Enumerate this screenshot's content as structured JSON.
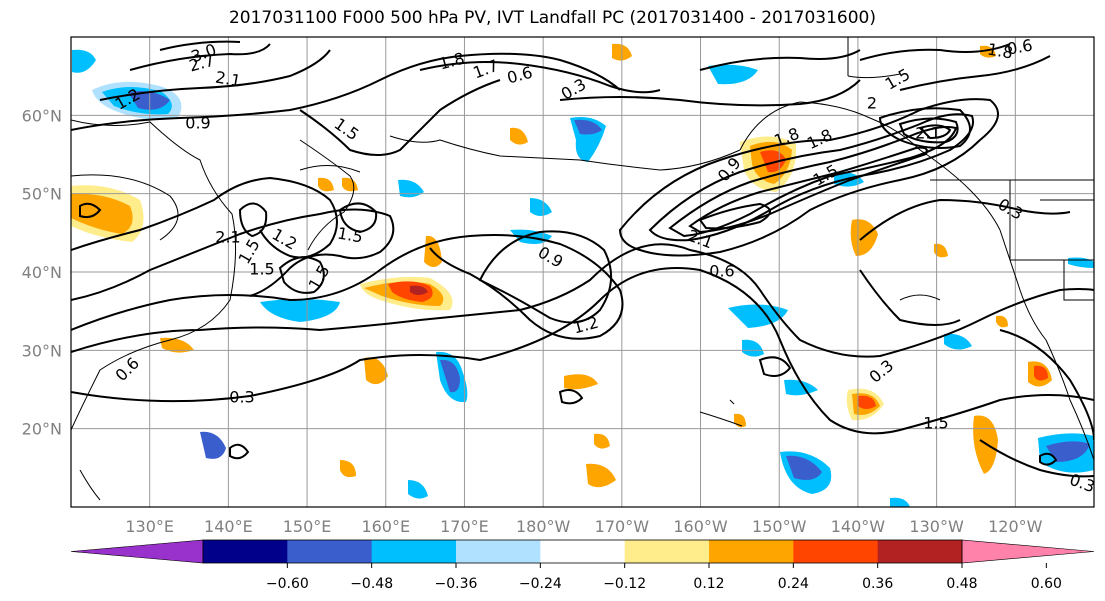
{
  "title": "2017031100 F000 500 hPa PV, IVT Landfall PC (2017031400 - 2017031600)",
  "lat_labels": [
    {
      "text": "60°N",
      "lat": 60
    },
    {
      "text": "50°N",
      "lat": 50
    },
    {
      "text": "40°N",
      "lat": 40
    },
    {
      "text": "30°N",
      "lat": 30
    },
    {
      "text": "20°N",
      "lat": 20
    }
  ],
  "lon_labels": [
    {
      "text": "130°E",
      "lon": 130
    },
    {
      "text": "140°E",
      "lon": 140
    },
    {
      "text": "150°E",
      "lon": 150
    },
    {
      "text": "160°E",
      "lon": 160
    },
    {
      "text": "170°E",
      "lon": 170
    },
    {
      "text": "180°W",
      "lon": 180
    },
    {
      "text": "170°W",
      "lon": 190
    },
    {
      "text": "160°W",
      "lon": 200
    },
    {
      "text": "150°W",
      "lon": 210
    },
    {
      "text": "140°W",
      "lon": 220
    },
    {
      "text": "130°W",
      "lon": 230
    },
    {
      "text": "120°W",
      "lon": 240
    }
  ],
  "colorbar": {
    "colors": [
      "#9932cc",
      "#00008b",
      "#3a5fcd",
      "#00bfff",
      "#b0e2ff",
      "#ffffff",
      "#ffec8b",
      "#ffa500",
      "#ff4500",
      "#b22222",
      "#ff82ab"
    ],
    "tick_labels": [
      "−0.60",
      "−0.48",
      "−0.36",
      "−0.24",
      "−0.12",
      "0.12",
      "0.24",
      "0.36",
      "0.48",
      "0.60"
    ]
  },
  "contour_labels": [
    "3.0",
    "2.7",
    "2.1",
    "1.8",
    "1.7",
    "0.6",
    "0.3",
    "2",
    "1.8",
    "1.5",
    "1.2",
    "0.6",
    "0.9",
    "1.8",
    "1.5",
    "1.5",
    "2.1",
    "0.3",
    "0.9",
    "1.5",
    "1.2",
    "1.5",
    "0.9",
    "2.1",
    "0.6",
    "1.2",
    "0.6",
    "0.3",
    "0.3",
    "0.3",
    "1.5",
    "1.8",
    "1.5",
    "2.1",
    "1.5"
  ]
}
